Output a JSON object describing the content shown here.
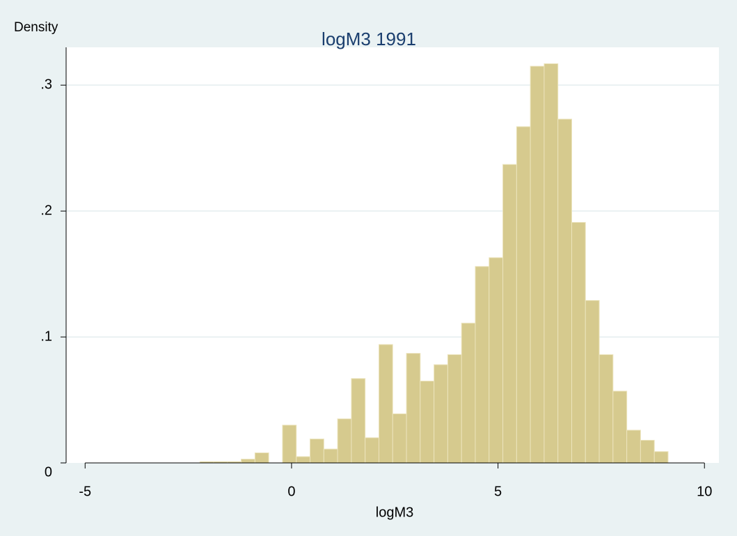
{
  "chart_data": {
    "type": "histogram",
    "title": "logM3 1991",
    "x_label": "logM3",
    "y_label": "Density",
    "bins": [
      -2.22,
      -1.887,
      -1.553,
      -1.22,
      -0.886,
      -0.553,
      -0.219,
      0.115,
      0.448,
      0.782,
      1.115,
      1.449,
      1.782,
      2.116,
      2.449,
      2.783,
      3.116,
      3.45,
      3.783,
      4.117,
      4.45,
      4.784,
      5.117,
      5.451,
      5.784,
      6.118,
      6.451,
      6.785,
      7.118,
      7.452,
      7.785,
      8.119,
      8.452,
      8.786,
      9.119
    ],
    "values": [
      0.001,
      0.001,
      0.001,
      0.003,
      0.008,
      0,
      0.03,
      0.005,
      0.019,
      0.011,
      0.035,
      0.067,
      0.02,
      0.094,
      0.039,
      0.087,
      0.065,
      0.078,
      0.086,
      0.111,
      0.156,
      0.163,
      0.237,
      0.267,
      0.315,
      0.317,
      0.273,
      0.191,
      0.129,
      0.086,
      0.057,
      0.026,
      0.018,
      0.009
    ],
    "color": "#d6ca8e",
    "xlim": [
      -5.46,
      10.35
    ],
    "xticks": [
      -5,
      0,
      5,
      10
    ],
    "ylim": [
      0,
      0.33
    ],
    "yticks": [
      0,
      {
        "value": 0.1,
        "label": ".1"
      },
      {
        "value": 0.2,
        "label": ".2"
      },
      {
        "value": 0.3,
        "label": ".3"
      }
    ],
    "grid": true
  }
}
